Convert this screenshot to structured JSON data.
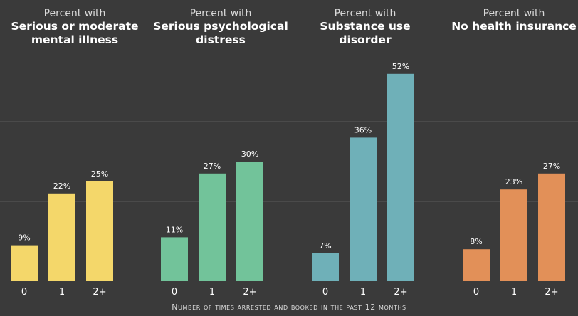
{
  "chart_data": {
    "type": "bar",
    "x_axis_title": "Number of times arrested and booked in the past 12 months",
    "categories": [
      "0",
      "1",
      "2+"
    ],
    "value_suffix": "%",
    "ylim": [
      0,
      60
    ],
    "grid": true,
    "panels": [
      {
        "prefix": "Percent with",
        "title": "Serious or moderate\nmental illness",
        "color": "#f4d76a",
        "values": [
          9,
          22,
          25
        ],
        "labels": [
          "9%",
          "22%",
          "25%"
        ]
      },
      {
        "prefix": "Percent with",
        "title": "Serious psychological\ndistress",
        "color": "#72c39a",
        "values": [
          11,
          27,
          30
        ],
        "labels": [
          "11%",
          "27%",
          "30%"
        ]
      },
      {
        "prefix": "Percent with",
        "title": "Substance use\ndisorder",
        "color": "#6fb0b8",
        "values": [
          7,
          36,
          52
        ],
        "labels": [
          "7%",
          "36%",
          "52%"
        ]
      },
      {
        "prefix": "Percent with",
        "title": "No health insurance",
        "color": "#e29058",
        "values": [
          8,
          23,
          27
        ],
        "labels": [
          "8%",
          "23%",
          "27%"
        ]
      }
    ]
  }
}
